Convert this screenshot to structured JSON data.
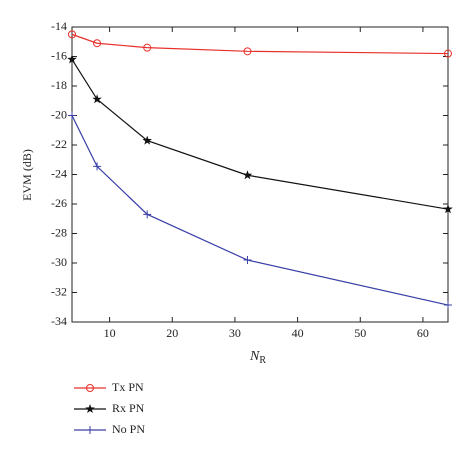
{
  "chart_data": {
    "type": "line",
    "xlabel": "N",
    "xlabel_subscript": "R",
    "ylabel": "EVM (dB)",
    "x": [
      4,
      8,
      16,
      32,
      64
    ],
    "series": [
      {
        "name": "Tx PN",
        "color": "#e8302a",
        "marker": "circle",
        "values": [
          -14.5,
          -15.1,
          -15.4,
          -15.65,
          -15.8
        ]
      },
      {
        "name": "Rx PN",
        "color": "#111111",
        "marker": "star",
        "values": [
          -16.2,
          -18.9,
          -21.7,
          -24.05,
          -26.35
        ]
      },
      {
        "name": "No PN",
        "color": "#3a3fa8",
        "marker": "plus",
        "values": [
          -20.0,
          -23.45,
          -26.7,
          -29.8,
          -32.85
        ]
      }
    ],
    "xlim": [
      4,
      64
    ],
    "xticks": [
      10,
      20,
      30,
      40,
      50,
      60
    ],
    "ylim": [
      -34,
      -14
    ],
    "yticks": [
      -14,
      -16,
      -18,
      -20,
      -22,
      -24,
      -26,
      -28,
      -30,
      -32,
      -34
    ],
    "legend": "below"
  }
}
